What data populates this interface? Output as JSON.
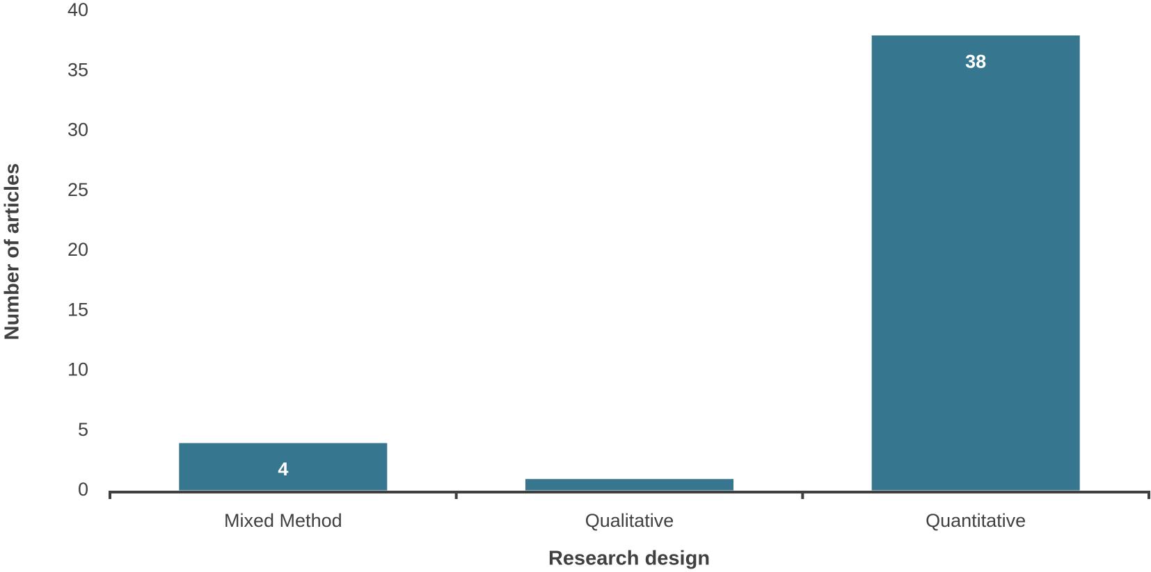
{
  "chart_data": {
    "type": "bar",
    "x_label": "Research design",
    "y_label": "Number of articles",
    "categories": [
      "Mixed Method",
      "Qualitative",
      "Quantitative"
    ],
    "values": [
      4,
      1,
      38
    ],
    "color": "#37768f",
    "ylim": [
      0,
      40
    ],
    "yticks": [
      0,
      5,
      10,
      15,
      20,
      25,
      30,
      35,
      40
    ],
    "grid": false
  }
}
